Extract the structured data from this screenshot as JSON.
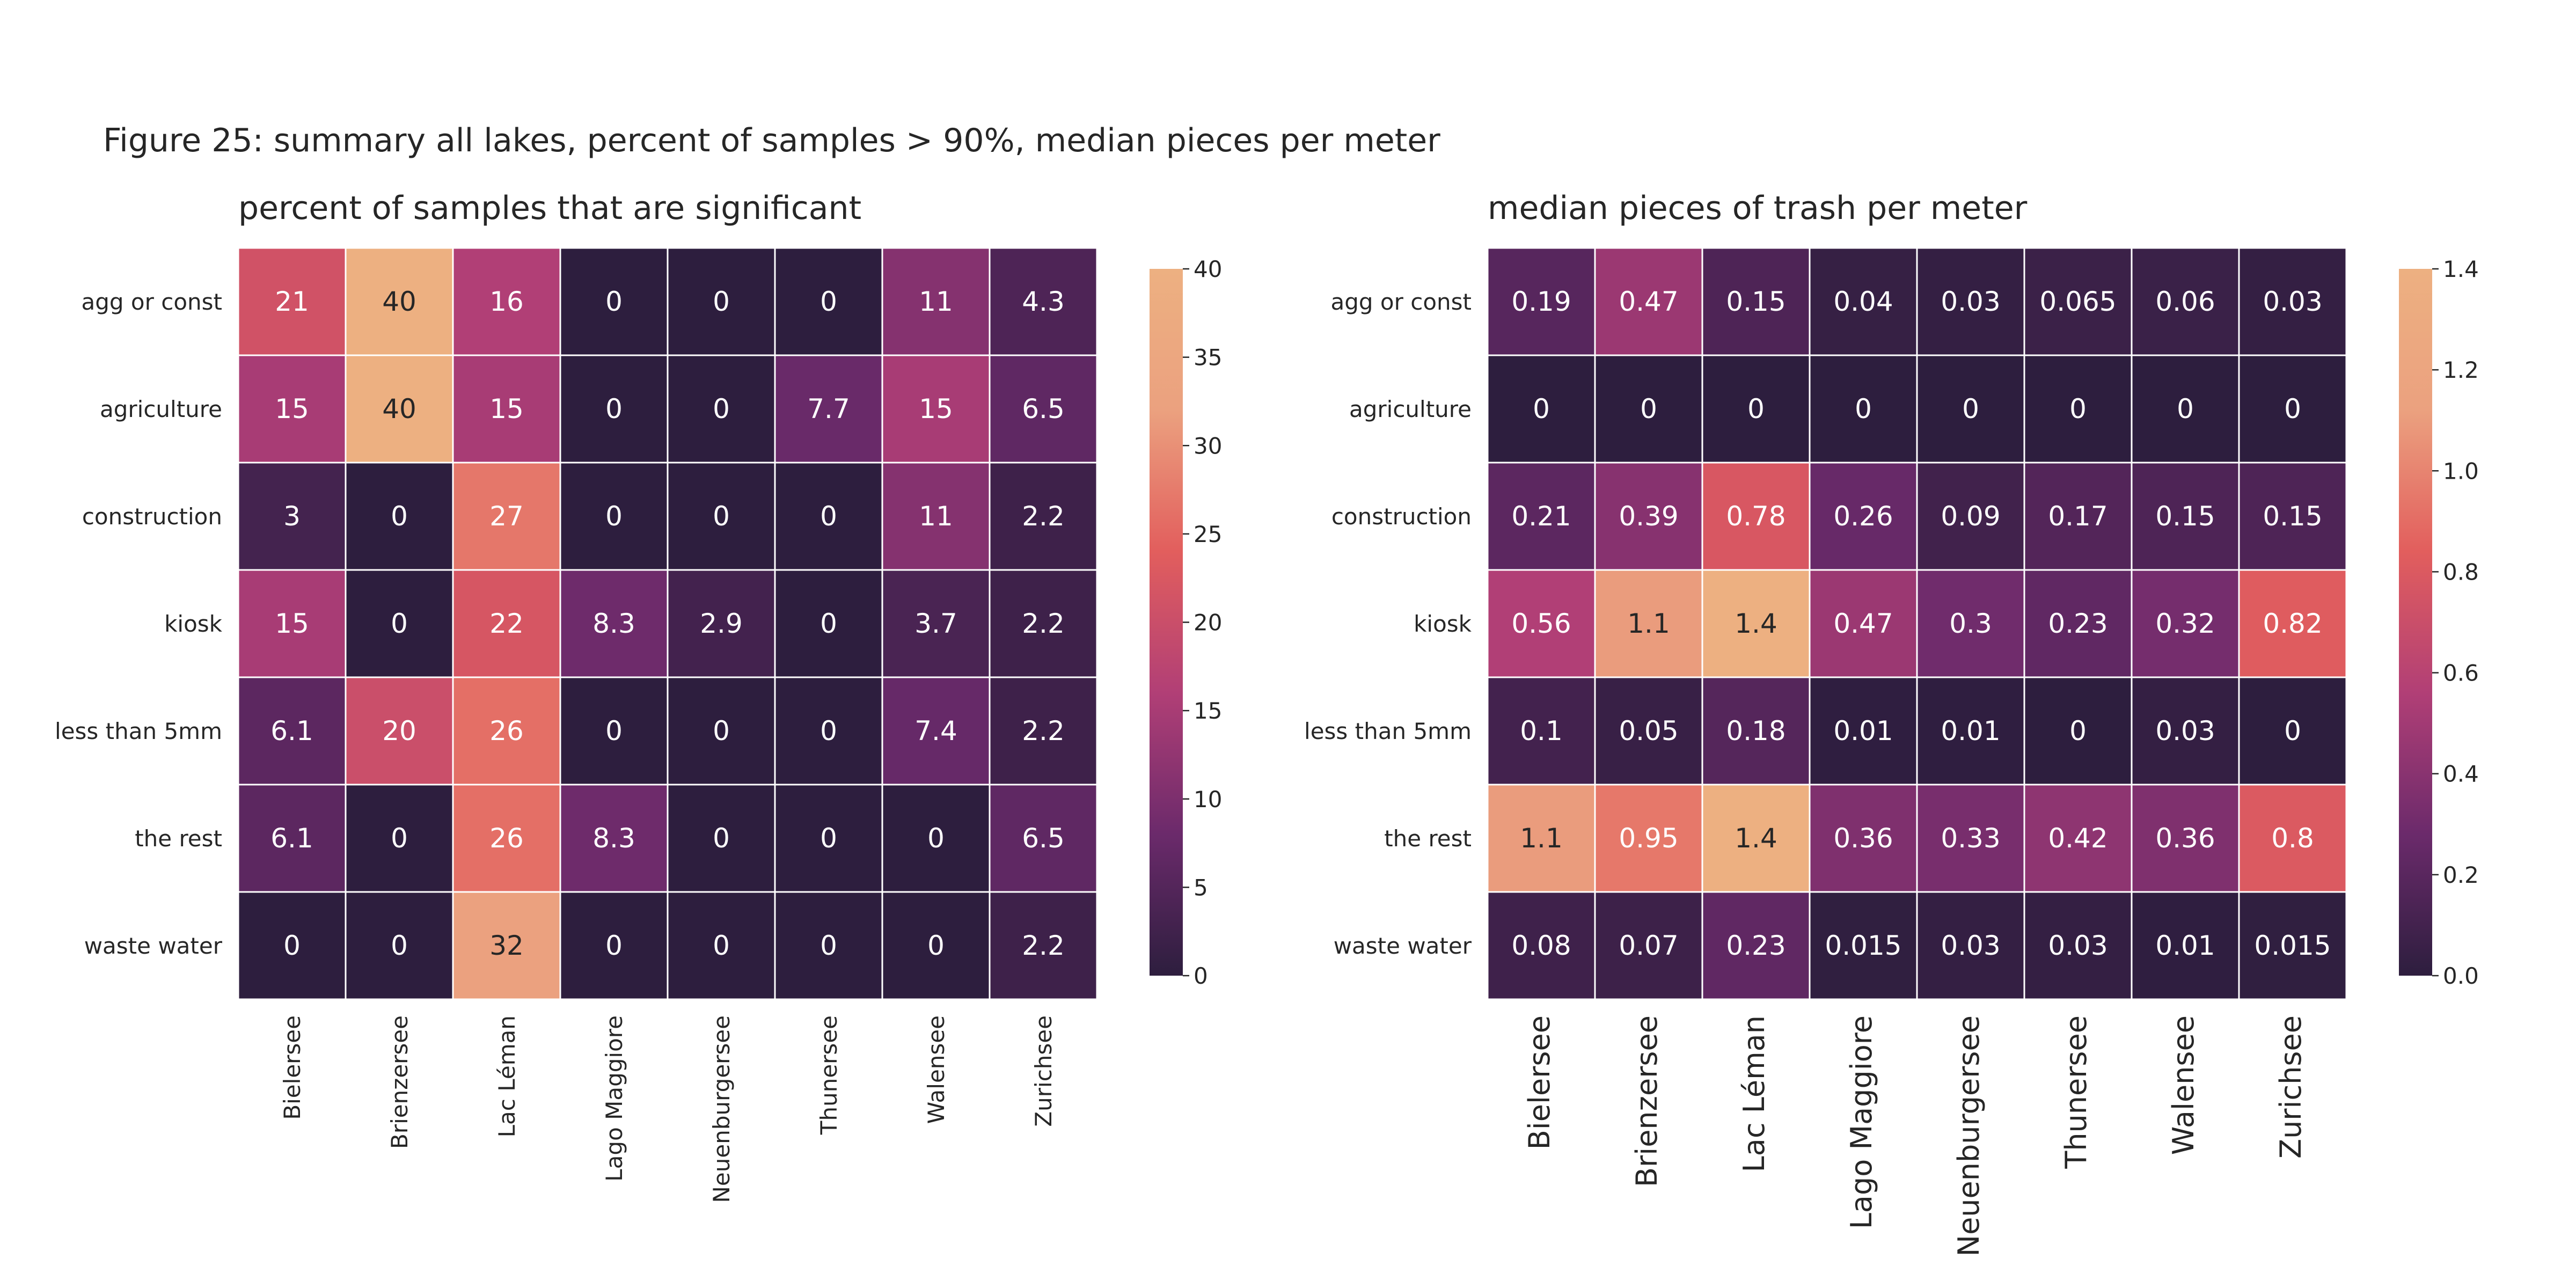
{
  "figure_title": "Figure 25: summary all lakes, percent of samples > 90%, median pieces per meter",
  "chart_data": [
    {
      "type": "heatmap",
      "title": "percent of samples that are significant",
      "rows": [
        "agg or const",
        "agriculture",
        "construction",
        "kiosk",
        "less than 5mm",
        "the rest",
        "waste water"
      ],
      "columns": [
        "Bielersee",
        "Brienzersee",
        "Lac Léman",
        "Lago Maggiore",
        "Neuenburgersee",
        "Thunersee",
        "Walensee",
        "Zurichsee"
      ],
      "values": [
        [
          21,
          40,
          16,
          0,
          0,
          0,
          11,
          4.3
        ],
        [
          15,
          40,
          15,
          0,
          0,
          7.7,
          15,
          6.5
        ],
        [
          3,
          0,
          27,
          0,
          0,
          0,
          11,
          2.2
        ],
        [
          15,
          0,
          22,
          8.3,
          2.9,
          0,
          3.7,
          2.2
        ],
        [
          6.1,
          20,
          26,
          0,
          0,
          0,
          7.4,
          2.2
        ],
        [
          6.1,
          0,
          26,
          8.3,
          0,
          0,
          0,
          6.5
        ],
        [
          0,
          0,
          32,
          0,
          0,
          0,
          0,
          2.2
        ]
      ],
      "vmin": 0,
      "vmax": 40,
      "colorbar_ticks": [
        "0",
        "5",
        "10",
        "15",
        "20",
        "25",
        "30",
        "35",
        "40"
      ],
      "colormap": [
        "#2d1e3e",
        "#6b2a6b",
        "#b13f76",
        "#e25e5d",
        "#eba17f",
        "#edb081"
      ]
    },
    {
      "type": "heatmap",
      "title": "median pieces of trash per meter",
      "rows": [
        "agg or const",
        "agriculture",
        "construction",
        "kiosk",
        "less than 5mm",
        "the rest",
        "waste water"
      ],
      "columns": [
        "Bielersee",
        "Brienzersee",
        "Lac Léman",
        "Lago Maggiore",
        "Neuenburgersee",
        "Thunersee",
        "Walensee",
        "Zurichsee"
      ],
      "values": [
        [
          0.19,
          0.47,
          0.15,
          0.04,
          0.03,
          0.065,
          0.06,
          0.03
        ],
        [
          0,
          0,
          0,
          0,
          0,
          0,
          0,
          0
        ],
        [
          0.21,
          0.39,
          0.78,
          0.26,
          0.09,
          0.17,
          0.15,
          0.15
        ],
        [
          0.56,
          1.1,
          1.4,
          0.47,
          0.3,
          0.23,
          0.32,
          0.82
        ],
        [
          0.1,
          0.05,
          0.18,
          0.01,
          0.01,
          0,
          0.03,
          0
        ],
        [
          1.1,
          0.95,
          1.4,
          0.36,
          0.33,
          0.42,
          0.36,
          0.8
        ],
        [
          0.08,
          0.07,
          0.23,
          0.015,
          0.03,
          0.03,
          0.01,
          0.015
        ]
      ],
      "vmin": 0,
      "vmax": 1.4,
      "colorbar_ticks": [
        "0.0",
        "0.2",
        "0.4",
        "0.6",
        "0.8",
        "1.0",
        "1.2",
        "1.4"
      ],
      "colormap": [
        "#2d1e3e",
        "#6b2a6b",
        "#b13f76",
        "#e25e5d",
        "#eba17f",
        "#edb081"
      ]
    }
  ]
}
